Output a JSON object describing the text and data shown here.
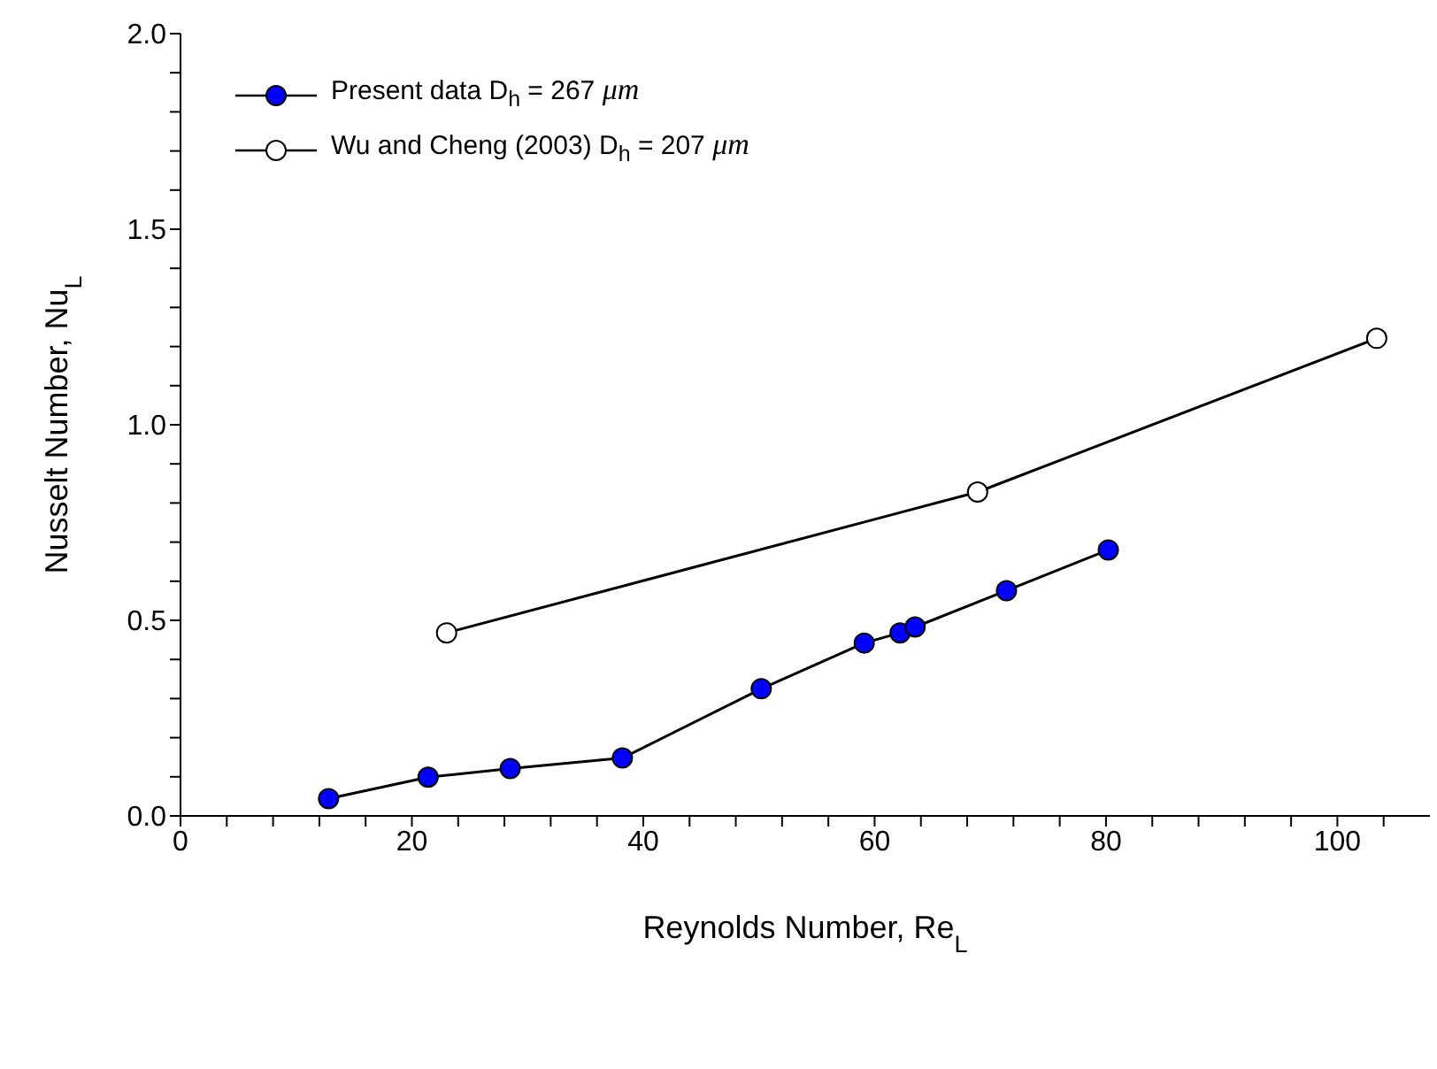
{
  "chart_data": {
    "type": "line",
    "xlabel": "Reynolds Number, Re$_{L}$",
    "ylabel": "Nusselt Number, Nu$_{L}$",
    "xlim": [
      0,
      108
    ],
    "xticks": [
      0,
      {
        "value": 4,
        "label": null
      },
      {
        "value": 8,
        "label": null
      },
      {
        "value": 12,
        "label": null
      },
      {
        "value": 16,
        "label": null
      },
      20,
      {
        "value": 24,
        "label": null
      },
      {
        "value": 28,
        "label": null
      },
      {
        "value": 32,
        "label": null
      },
      {
        "value": 36,
        "label": null
      },
      40,
      {
        "value": 44,
        "label": null
      },
      {
        "value": 48,
        "label": null
      },
      {
        "value": 52,
        "label": null
      },
      {
        "value": 56,
        "label": null
      },
      60,
      {
        "value": 64,
        "label": null
      },
      {
        "value": 68,
        "label": null
      },
      {
        "value": 72,
        "label": null
      },
      {
        "value": 76,
        "label": null
      },
      80,
      {
        "value": 84,
        "label": null
      },
      {
        "value": 88,
        "label": null
      },
      {
        "value": 92,
        "label": null
      },
      {
        "value": 96,
        "label": null
      },
      100,
      {
        "value": 104,
        "label": null
      }
    ],
    "ylim": [
      0,
      2
    ],
    "yticks": [
      {
        "value": 0,
        "label": "0.0"
      },
      {
        "value": 0.1,
        "label": null
      },
      {
        "value": 0.2,
        "label": null
      },
      {
        "value": 0.3,
        "label": null
      },
      {
        "value": 0.4,
        "label": null
      },
      {
        "value": 0.5,
        "label": "0.5"
      },
      {
        "value": 0.6,
        "label": null
      },
      {
        "value": 0.7,
        "label": null
      },
      {
        "value": 0.8,
        "label": null
      },
      {
        "value": 0.9,
        "label": null
      },
      {
        "value": 1,
        "label": "1.0"
      },
      {
        "value": 1.1,
        "label": null
      },
      {
        "value": 1.2,
        "label": null
      },
      {
        "value": 1.3,
        "label": null
      },
      {
        "value": 1.4,
        "label": null
      },
      {
        "value": 1.5,
        "label": "1.5"
      },
      {
        "value": 1.6,
        "label": null
      },
      {
        "value": 1.7,
        "label": null
      },
      {
        "value": 1.8,
        "label": null
      },
      {
        "value": 1.9,
        "label": null
      },
      {
        "value": 2,
        "label": "2.0"
      }
    ],
    "grid": false,
    "legend": "top left",
    "marker": "circle",
    "line_style": "solid",
    "series": [
      {
        "name": "Present data D$_{h}$ = 267  μm",
        "color": "#0000ff",
        "x": [
          12.8,
          21.4,
          28.5,
          38.2,
          50.2,
          59.1,
          62.2,
          63.5,
          71.4,
          80.2
        ],
        "values": [
          0.044,
          0.099,
          0.121,
          0.148,
          0.325,
          0.442,
          0.468,
          0.483,
          0.576,
          0.68
        ]
      },
      {
        "name": "Wu and Cheng (2003) D$_{h}$ = 207  μm",
        "color": "#ffffff",
        "x": [
          23.0,
          68.9,
          103.4
        ],
        "values": [
          0.468,
          0.828,
          1.221
        ]
      }
    ]
  }
}
